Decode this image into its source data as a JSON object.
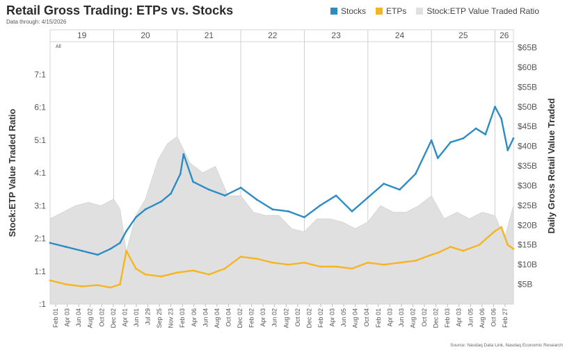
{
  "header": {
    "title": "Retail Gross Trading: ETPs vs. Stocks",
    "subtitle": "Data through: 4/15/2026",
    "source": "Source: Nasdaq Data Link, Nasdaq Economic Research"
  },
  "legend": [
    {
      "label": "Stocks",
      "color": "#2b8cc4"
    },
    {
      "label": "ETPs",
      "color": "#f5b51e"
    },
    {
      "label": "Stock:ETP Value Traded Ratio",
      "color": "#e0e0e0"
    }
  ],
  "chart_data": {
    "type": "line",
    "title": "Retail Gross Trading: ETPs vs. Stocks",
    "ylabel_left": "Stock:ETP Value Traded Ratio",
    "ylabel_right": "Daily Gross Retail Value Traded",
    "filter_label": "All",
    "y_left_ticks": [
      ":1",
      "1:1",
      "2:1",
      "3:1",
      "4:1",
      "5:1",
      "6:1",
      "7:1"
    ],
    "y_left_range": [
      0,
      8
    ],
    "y_right_ticks": [
      "$5B",
      "$10B",
      "$15B",
      "$20B",
      "$25B",
      "$30B",
      "$35B",
      "$40B",
      "$45B",
      "$50B",
      "$55B",
      "$60B",
      "$65B"
    ],
    "y_right_range": [
      0,
      66.5
    ],
    "years": [
      "19",
      "20",
      "21",
      "22",
      "23",
      "24",
      "25",
      "26"
    ],
    "x_ticks": [
      "Feb 01",
      "Apr 03",
      "Jun 04",
      "Aug 02",
      "Oct 02",
      "Dec 02",
      "Apr 01",
      "Jun 01",
      "Jul 29",
      "Sep 25",
      "Nov 23",
      "Feb 03",
      "Apr 06",
      "Jun 04",
      "Aug 04",
      "Oct 04",
      "Dec 02",
      "Feb 02",
      "Apr 03",
      "Jun 02",
      "Aug 02",
      "Oct 02",
      "Dec 02",
      "Feb 02",
      "Apr 03",
      "Jun 05",
      "Aug 04",
      "Oct 04",
      "Feb 01",
      "Apr 03",
      "Jun 03",
      "Aug 02",
      "Oct 02",
      "Dec 02",
      "Feb 03",
      "Apr 03",
      "Jun 05",
      "Aug 06",
      "Oct 06",
      "Feb 27"
    ],
    "x_range": [
      2019.0,
      2026.29
    ],
    "series": [
      {
        "name": "Stocks",
        "color": "#2b8cc4",
        "axis": "right",
        "x": [
          2019.0,
          2019.25,
          2019.5,
          2019.75,
          2019.95,
          2020.1,
          2020.2,
          2020.35,
          2020.5,
          2020.75,
          2020.9,
          2021.05,
          2021.1,
          2021.25,
          2021.5,
          2021.75,
          2022.0,
          2022.25,
          2022.5,
          2022.75,
          2023.0,
          2023.25,
          2023.5,
          2023.75,
          2024.0,
          2024.25,
          2024.5,
          2024.75,
          2025.0,
          2025.1,
          2025.3,
          2025.5,
          2025.7,
          2025.85,
          2026.0,
          2026.1,
          2026.2,
          2026.29
        ],
        "values": [
          15.5,
          14.5,
          13.5,
          12.5,
          14.0,
          15.5,
          18.5,
          22.0,
          24.0,
          26.0,
          28.0,
          33.0,
          38.0,
          31.0,
          29.0,
          27.5,
          29.5,
          26.5,
          24.0,
          23.5,
          22.0,
          25.0,
          27.5,
          23.5,
          27.0,
          30.5,
          29.0,
          33.0,
          41.5,
          37.0,
          41.0,
          42.0,
          44.5,
          43.0,
          50.0,
          47.0,
          39.0,
          42.0
        ]
      },
      {
        "name": "ETPs",
        "color": "#f5b51e",
        "axis": "right",
        "x": [
          2019.0,
          2019.25,
          2019.5,
          2019.75,
          2019.95,
          2020.1,
          2020.2,
          2020.35,
          2020.5,
          2020.75,
          2021.0,
          2021.25,
          2021.5,
          2021.75,
          2022.0,
          2022.25,
          2022.5,
          2022.75,
          2023.0,
          2023.25,
          2023.5,
          2023.75,
          2024.0,
          2024.25,
          2024.5,
          2024.75,
          2025.0,
          2025.1,
          2025.3,
          2025.5,
          2025.75,
          2026.0,
          2026.1,
          2026.2,
          2026.29
        ],
        "values": [
          6.0,
          5.0,
          4.5,
          4.8,
          4.2,
          5.0,
          13.5,
          9.0,
          7.5,
          7.0,
          8.0,
          8.5,
          7.5,
          9.0,
          12.0,
          11.5,
          10.5,
          10.0,
          10.5,
          9.5,
          9.5,
          9.0,
          10.5,
          10.0,
          10.5,
          11.0,
          12.5,
          13.0,
          14.5,
          13.5,
          15.0,
          18.5,
          19.5,
          15.0,
          14.0
        ]
      },
      {
        "name": "Stock:ETP Value Traded Ratio",
        "color": "#e0e0e0",
        "axis": "left",
        "x": [
          2019.0,
          2019.2,
          2019.4,
          2019.6,
          2019.8,
          2020.0,
          2020.1,
          2020.2,
          2020.35,
          2020.5,
          2020.7,
          2020.85,
          2021.0,
          2021.2,
          2021.4,
          2021.6,
          2021.8,
          2022.0,
          2022.2,
          2022.4,
          2022.6,
          2022.8,
          2023.0,
          2023.2,
          2023.4,
          2023.6,
          2023.8,
          2024.0,
          2024.2,
          2024.4,
          2024.6,
          2024.8,
          2025.0,
          2025.2,
          2025.4,
          2025.6,
          2025.8,
          2026.0,
          2026.15,
          2026.29
        ],
        "values": [
          2.6,
          2.8,
          3.0,
          3.1,
          3.0,
          3.2,
          2.9,
          1.6,
          2.7,
          3.2,
          4.4,
          4.9,
          5.1,
          4.3,
          4.0,
          4.2,
          3.3,
          3.3,
          2.8,
          2.7,
          2.7,
          2.3,
          2.2,
          2.6,
          2.6,
          2.5,
          2.3,
          2.5,
          3.0,
          2.8,
          2.8,
          3.0,
          3.3,
          2.6,
          2.8,
          2.6,
          2.8,
          2.7,
          2.0,
          3.0
        ]
      }
    ]
  }
}
